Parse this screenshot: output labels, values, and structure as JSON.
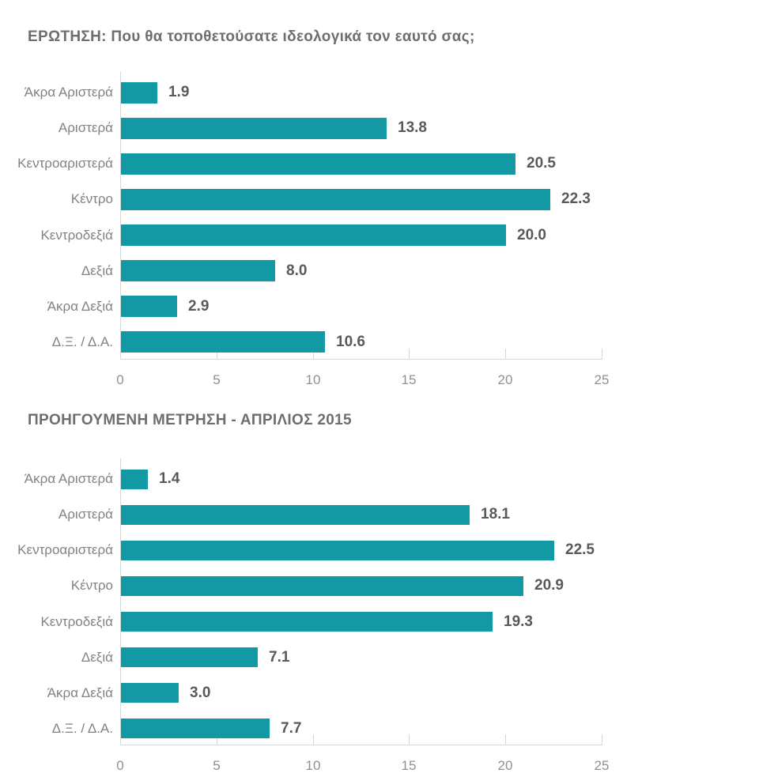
{
  "colors": {
    "bar": "#1299a4",
    "title_text": "#6d6e71",
    "value_text": "#58595b",
    "category_text": "#808285",
    "tick_text": "#8e9093",
    "axis_line": "#d6d7d9",
    "background": "#ffffff"
  },
  "chart_data": [
    {
      "type": "bar",
      "orientation": "horizontal",
      "title": "ΕΡΩΤΗΣΗ: Που θα τοποθετούσατε ιδεολογικά τον εαυτό σας;",
      "categories": [
        "Άκρα Αριστερά",
        "Αριστερά",
        "Κεντροαριστερά",
        "Κέντρο",
        "Κεντροδεξιά",
        "Δεξιά",
        "Άκρα Δεξιά",
        "Δ.Ξ. / Δ.Α."
      ],
      "values": [
        1.9,
        13.8,
        20.5,
        22.3,
        20.0,
        8.0,
        2.9,
        10.6
      ],
      "value_labels": [
        "1.9",
        "13.8",
        "20.5",
        "22.3",
        "20.0",
        "8.0",
        "2.9",
        "10.6"
      ],
      "xlabel": "",
      "ylabel": "",
      "xlim": [
        0,
        25
      ],
      "xticks": [
        0,
        5,
        10,
        15,
        20,
        25
      ],
      "bar_color": "#1299a4",
      "grid": false,
      "legend": "none",
      "data_labels": true
    },
    {
      "type": "bar",
      "orientation": "horizontal",
      "title": "ΠΡΟΗΓΟΥΜΕΝΗ ΜΕΤΡΗΣΗ - ΑΠΡΙΛΙΟΣ 2015",
      "categories": [
        "Άκρα Αριστερά",
        "Αριστερά",
        "Κεντροαριστερά",
        "Κέντρο",
        "Κεντροδεξιά",
        "Δεξιά",
        "Άκρα Δεξιά",
        "Δ.Ξ. / Δ.Α."
      ],
      "values": [
        1.4,
        18.1,
        22.5,
        20.9,
        19.3,
        7.1,
        3.0,
        7.7
      ],
      "value_labels": [
        "1.4",
        "18.1",
        "22.5",
        "20.9",
        "19.3",
        "7.1",
        "3.0",
        "7.7"
      ],
      "xlabel": "",
      "ylabel": "",
      "xlim": [
        0,
        25
      ],
      "xticks": [
        0,
        5,
        10,
        15,
        20,
        25
      ],
      "bar_color": "#1299a4",
      "grid": false,
      "legend": "none",
      "data_labels": true
    }
  ]
}
